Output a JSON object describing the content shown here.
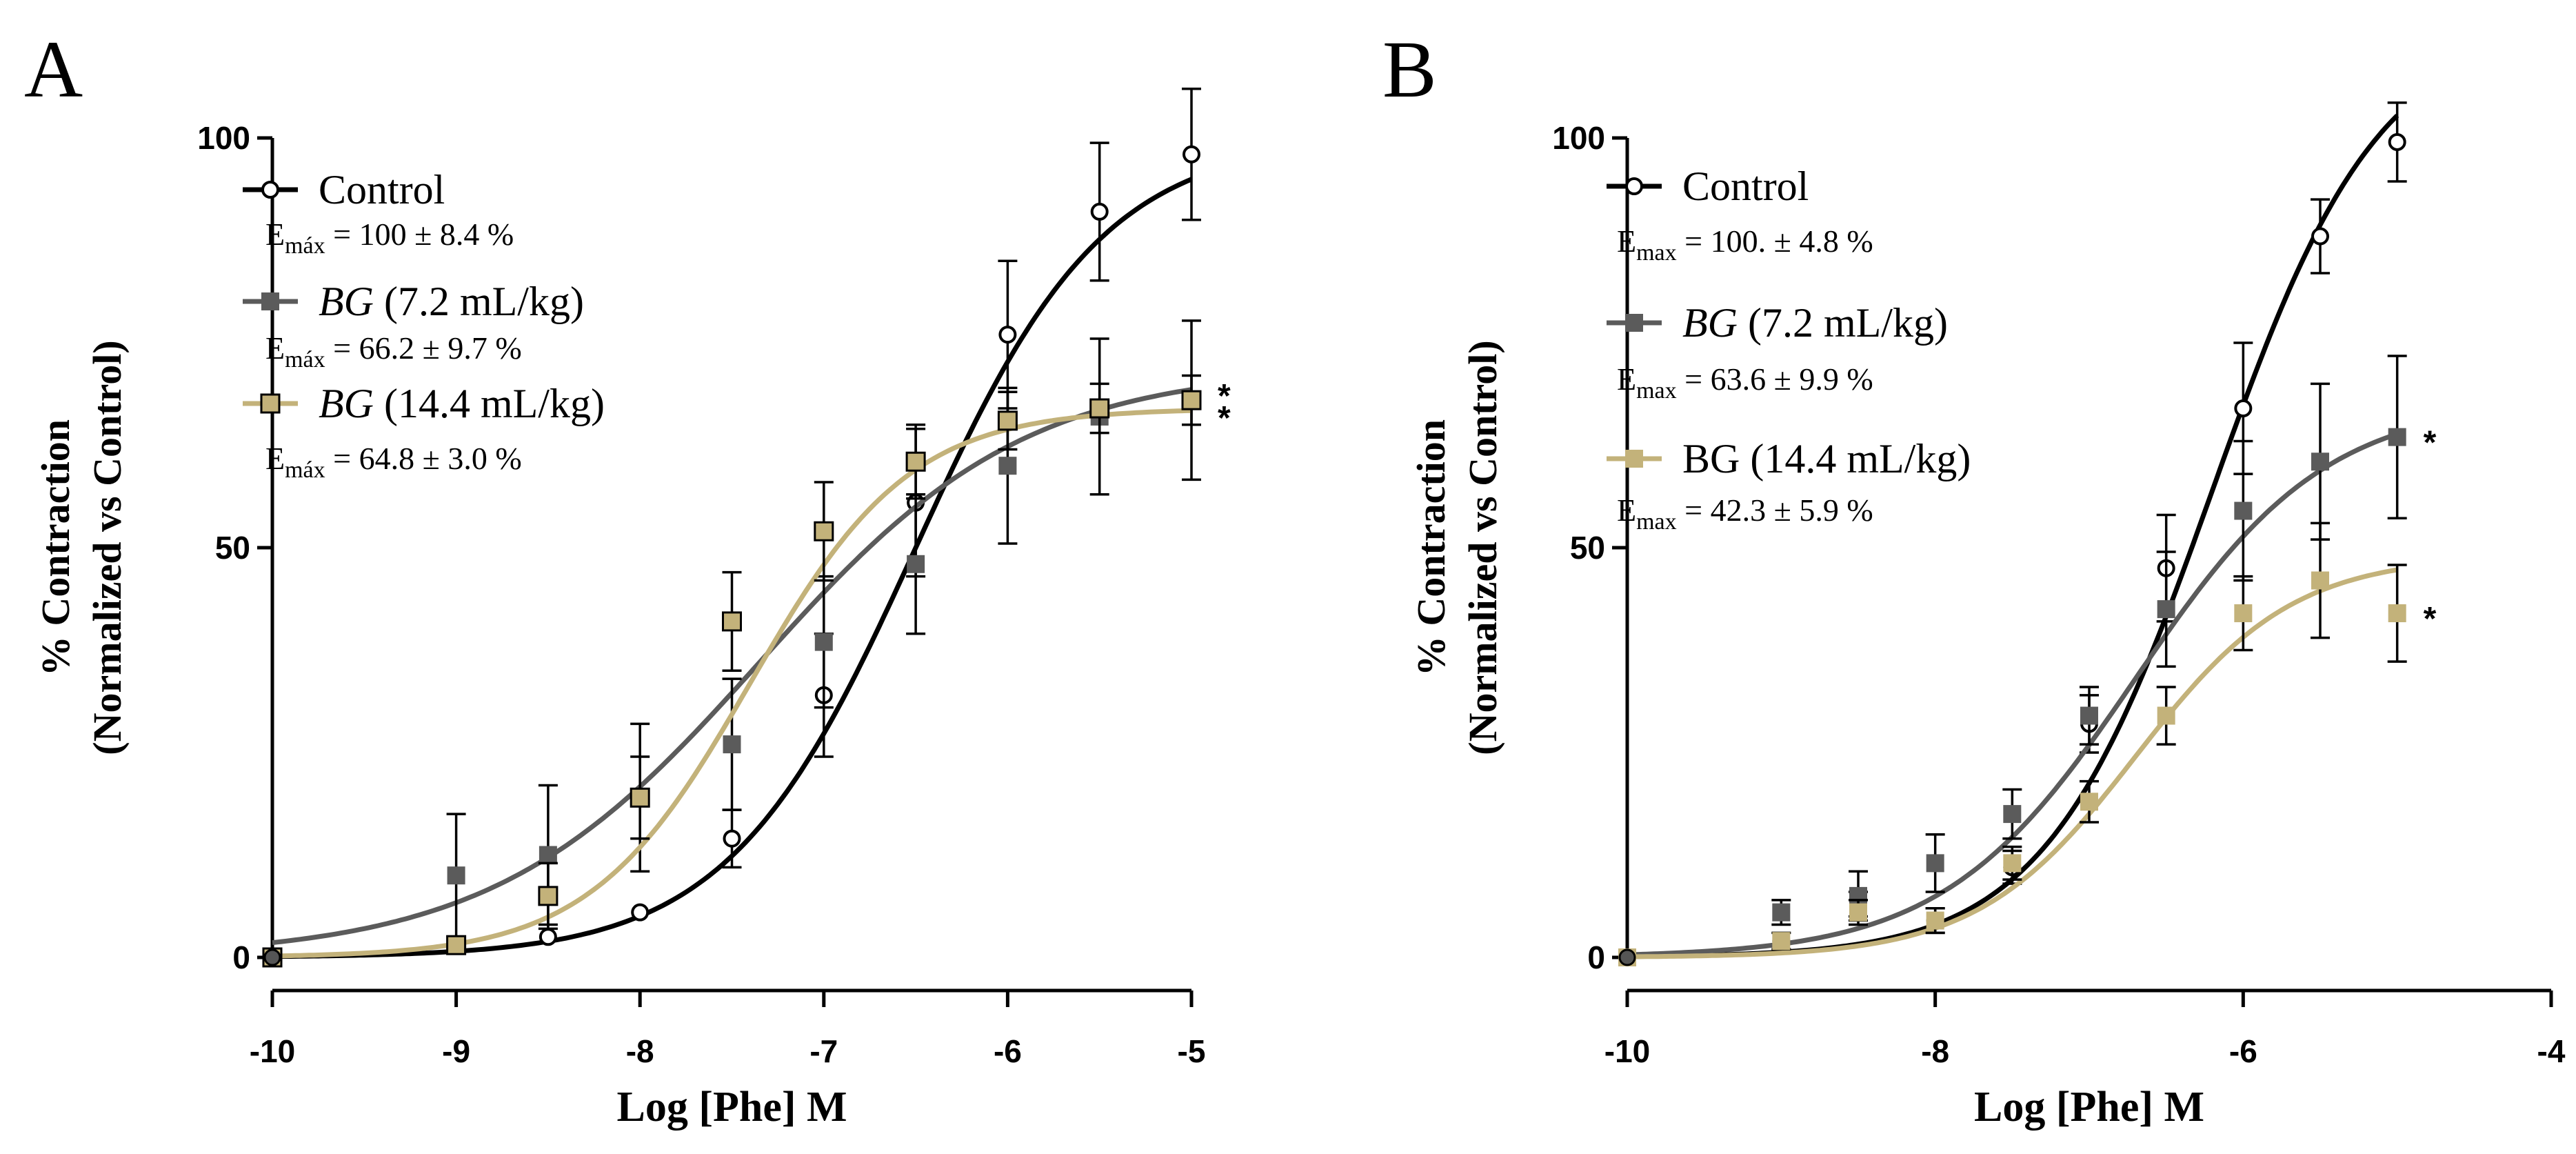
{
  "chart_data": [
    {
      "panel_label": "A",
      "type": "line",
      "xlabel": "Log [Phe] M",
      "ylabel_line1": "% Contraction",
      "ylabel_line2": "(Normalized vs Control)",
      "xlim": [
        -10,
        -5
      ],
      "ylim": [
        0,
        100
      ],
      "x_ticks": [
        -10,
        -9,
        -8,
        -7,
        -6,
        -5
      ],
      "x_tick_labels": [
        "-10",
        "-9",
        "-8",
        "-7",
        "-6",
        "-5"
      ],
      "y_ticks": [
        0,
        50,
        100
      ],
      "y_tick_labels": [
        "0",
        "50",
        "100"
      ],
      "grid": false,
      "legend_position": "top-left",
      "series": [
        {
          "name": "Control",
          "name_italic": "",
          "name_rest": "Control",
          "emax_label": "E",
          "emax_sub": "máx",
          "emax_text": " = 100 ± 8.4 %",
          "color": "#000000",
          "marker": "open-circle",
          "x": [
            -10,
            -9,
            -8.5,
            -8,
            -7.5,
            -7,
            -6.5,
            -6,
            -5.5,
            -5
          ],
          "y": [
            0,
            1.5,
            2.5,
            5.5,
            14.5,
            32,
            55.5,
            76,
            91,
            98
          ],
          "err": [
            0,
            0,
            0,
            0,
            3.5,
            7.5,
            9,
            9,
            8.4,
            8
          ],
          "fit": {
            "bottom": 0,
            "top": 100,
            "logec50": -6.5,
            "hill": 0.85
          },
          "star": ""
        },
        {
          "name": "BG (7.2 mL/kg)",
          "name_italic": "BG",
          "name_rest": " (7.2 mL/kg)",
          "emax_label": "E",
          "emax_sub": "máx",
          "emax_text": " = 66.2 ± 9.7 %",
          "color": "#5b5b5b",
          "marker": "filled-square",
          "x": [
            -10,
            -9,
            -8.5,
            -8,
            -7.5,
            -7,
            -6.5,
            -6,
            -5.5,
            -5
          ],
          "y": [
            0,
            10,
            12.5,
            19.5,
            26,
            38.5,
            48,
            60,
            66,
            68
          ],
          "err": [
            0,
            7.5,
            8.5,
            9,
            8,
            8,
            8.5,
            9.5,
            9.5,
            9.7
          ],
          "fit": {
            "bottom": 0,
            "top": 72,
            "logec50": -7.35,
            "hill": 0.6
          },
          "star": "*"
        },
        {
          "name": "BG (14.4 mL/kg)",
          "name_italic": "BG",
          "name_rest": " (14.4 mL/kg)",
          "emax_label": "E",
          "emax_sub": "máx",
          "emax_text": " = 64.8 ± 3.0 %",
          "color": "#c3b27a",
          "marker": "outlined-square",
          "x": [
            -10,
            -9,
            -8.5,
            -8,
            -7.5,
            -7,
            -6.5,
            -6,
            -5.5,
            -5
          ],
          "y": [
            0,
            1.5,
            7.5,
            19.5,
            41,
            52,
            60.5,
            65.5,
            67,
            68
          ],
          "err": [
            0,
            0,
            4,
            5,
            6,
            6,
            4.5,
            3.5,
            3,
            3
          ],
          "fit": {
            "bottom": 0,
            "top": 67,
            "logec50": -7.4,
            "hill": 1.0
          },
          "star": "*"
        }
      ]
    },
    {
      "panel_label": "B",
      "type": "line",
      "xlabel": "Log [Phe] M",
      "ylabel_line1": "% Contraction",
      "ylabel_line2": "(Normalized vs Control)",
      "xlim": [
        -10,
        -4
      ],
      "ylim": [
        0,
        100
      ],
      "x_ticks": [
        -10,
        -8,
        -6,
        -4
      ],
      "x_tick_labels": [
        "-10",
        "-8",
        "-6",
        "-4"
      ],
      "y_ticks": [
        0,
        50,
        100
      ],
      "y_tick_labels": [
        "0",
        "50",
        "100"
      ],
      "grid": false,
      "legend_position": "top-left",
      "series": [
        {
          "name": "Control",
          "name_italic": "",
          "name_rest": "Control",
          "emax_label": "E",
          "emax_sub": "max",
          "emax_text": " = 100. ±  4.8 %",
          "color": "#000000",
          "marker": "open-circle",
          "x": [
            -10,
            -9,
            -8.5,
            -8,
            -7.5,
            -7,
            -6.5,
            -6,
            -5.5,
            -5
          ],
          "y": [
            0,
            2,
            6.5,
            4.5,
            11,
            28.5,
            47.5,
            67,
            88,
            99.5
          ],
          "err": [
            0,
            0,
            1.5,
            1.5,
            2,
            3.5,
            6.5,
            8,
            4.5,
            4.8
          ],
          "fit": {
            "bottom": 0,
            "top": 114,
            "logec50": -6.2,
            "hill": 0.8
          },
          "star": ""
        },
        {
          "name": "BG (7.2 mL/kg)",
          "name_italic": "BG",
          "name_rest": " (7.2 mL/kg)",
          "emax_label": "E",
          "emax_sub": "max",
          "emax_text": " = 63.6 ± 9.9 %",
          "color": "#5b5b5b",
          "marker": "filled-square",
          "x": [
            -10,
            -9,
            -8.5,
            -8,
            -7.5,
            -7,
            -6.5,
            -6,
            -5.5,
            -5
          ],
          "y": [
            0,
            5.5,
            7.5,
            11.5,
            17.5,
            29.5,
            42.5,
            54.5,
            60.5,
            63.5
          ],
          "err": [
            0,
            1.5,
            3,
            3.5,
            3,
            3.5,
            7,
            8.5,
            9.5,
            9.9
          ],
          "fit": {
            "bottom": 0,
            "top": 68,
            "logec50": -6.7,
            "hill": 0.7
          },
          "star": "*"
        },
        {
          "name": "BG (14.4 mL/kg)",
          "name_italic": "",
          "name_rest": "BG (14.4 mL/kg)",
          "emax_label": "E",
          "emax_sub": "max",
          "emax_text": " = 42.3 ± 5.9 %",
          "color": "#c3b27a",
          "marker": "filled-square",
          "x": [
            -10,
            -9,
            -8.5,
            -8,
            -7.5,
            -7,
            -6.5,
            -6,
            -5.5,
            -5
          ],
          "y": [
            0,
            2,
            5.5,
            4.5,
            11.5,
            19,
            29.5,
            42,
            46,
            42
          ],
          "err": [
            0,
            1,
            1.5,
            1.5,
            2,
            2.5,
            3.5,
            4.5,
            7,
            5.9
          ],
          "fit": {
            "bottom": 0,
            "top": 49,
            "logec50": -6.7,
            "hill": 0.85
          },
          "star": "*"
        }
      ]
    }
  ]
}
